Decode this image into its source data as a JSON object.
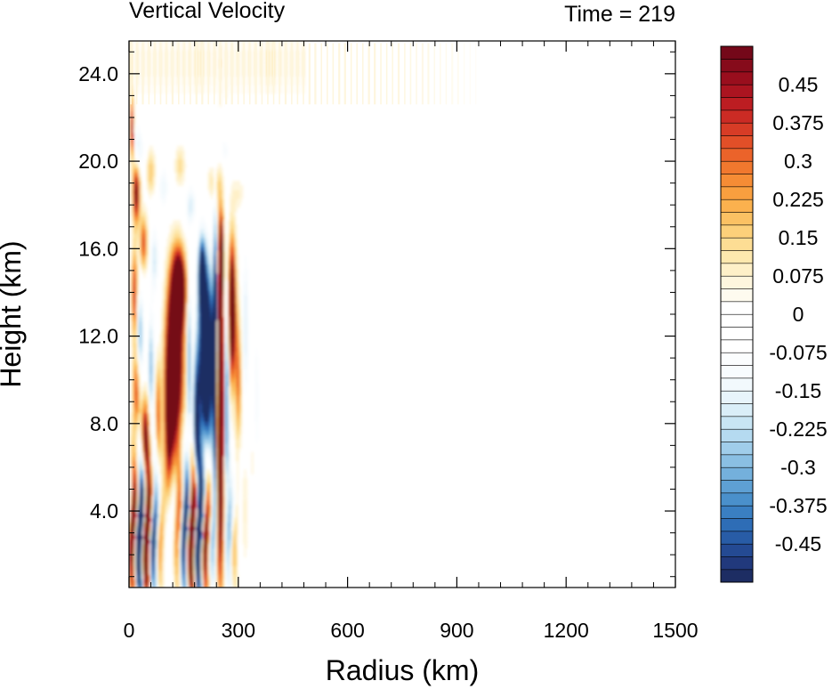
{
  "chart_data": {
    "type": "heatmap",
    "title": "Vertical Velocity",
    "time_label": "Time = 219",
    "xlabel": "Radius (km)",
    "ylabel": "Height (km)",
    "xlim": [
      0,
      1500
    ],
    "ylim": [
      0.5,
      25.5
    ],
    "x_ticks": [
      0,
      300,
      600,
      900,
      1200,
      1500
    ],
    "x_tick_labels": [
      "0",
      "300",
      "600",
      "900",
      "1200",
      "1500"
    ],
    "y_ticks": [
      4,
      8,
      12,
      16,
      20,
      24
    ],
    "y_tick_labels": [
      "4.0",
      "8.0",
      "12.0",
      "16.0",
      "20.0",
      "24.0"
    ],
    "colorbar": {
      "levels": [
        -0.525,
        -0.5,
        -0.475,
        -0.45,
        -0.425,
        -0.4,
        -0.375,
        -0.35,
        -0.325,
        -0.3,
        -0.275,
        -0.25,
        -0.225,
        -0.2,
        -0.175,
        -0.15,
        -0.125,
        -0.1,
        -0.075,
        -0.05,
        -0.025,
        0,
        0.025,
        0.05,
        0.075,
        0.1,
        0.125,
        0.15,
        0.175,
        0.2,
        0.225,
        0.25,
        0.275,
        0.3,
        0.325,
        0.35,
        0.375,
        0.4,
        0.425,
        0.45,
        0.475,
        0.5,
        0.525
      ],
      "labels": [
        "-0.45",
        "-0.375",
        "-0.3",
        "-0.225",
        "-0.15",
        "-0.075",
        "0",
        "0.075",
        "0.15",
        "0.225",
        "0.3",
        "0.375",
        "0.45"
      ],
      "label_values": [
        -0.45,
        -0.375,
        -0.3,
        -0.225,
        -0.15,
        -0.075,
        0,
        0.075,
        0.15,
        0.225,
        0.3,
        0.375,
        0.45
      ],
      "colors": [
        "#1d2d63",
        "#21397c",
        "#244a93",
        "#285ca6",
        "#2e6db6",
        "#3a7fc2",
        "#4a90cb",
        "#5ea0d4",
        "#74b0dc",
        "#8abfe3",
        "#a0cdea",
        "#b5daf0",
        "#c8e5f4",
        "#daeef8",
        "#e8f4fb",
        "#f2f9fd",
        "#f8fcfe",
        "#fbfdfe",
        "#ffffff",
        "#ffffff",
        "#ffffff",
        "#ffffff",
        "#fefbef",
        "#fef6de",
        "#fef0c8",
        "#fde8ae",
        "#fddd94",
        "#fcd07a",
        "#fbc163",
        "#fbb14e",
        "#f99f3f",
        "#f68c35",
        "#f1782e",
        "#eb632a",
        "#e24f28",
        "#d73c26",
        "#cb2b24",
        "#bc1d22",
        "#ab1420",
        "#990e1d",
        "#860b1b",
        "#740819"
      ]
    },
    "features": [
      {
        "kind": "updraft",
        "x_range": [
          90,
          160
        ],
        "y_range": [
          5.5,
          16.0
        ],
        "peak": 0.5
      },
      {
        "kind": "downdraft",
        "x_range": [
          185,
          235
        ],
        "y_range": [
          6.0,
          16.5
        ],
        "peak": -0.5
      },
      {
        "kind": "updraft",
        "x_range": [
          238,
          262
        ],
        "y_range": [
          1.0,
          17.0
        ],
        "peak": 0.5
      },
      {
        "kind": "updraft",
        "x_range": [
          265,
          310
        ],
        "y_range": [
          10.0,
          16.5
        ],
        "peak": 0.45
      },
      {
        "kind": "mixed",
        "x_range": [
          0,
          300
        ],
        "y_range": [
          0.5,
          8.0
        ],
        "peak": 0.5
      },
      {
        "kind": "weak stratospheric waves",
        "x_range": [
          0,
          960
        ],
        "y_range": [
          22.5,
          25.5
        ],
        "peak": 0.08
      }
    ]
  }
}
